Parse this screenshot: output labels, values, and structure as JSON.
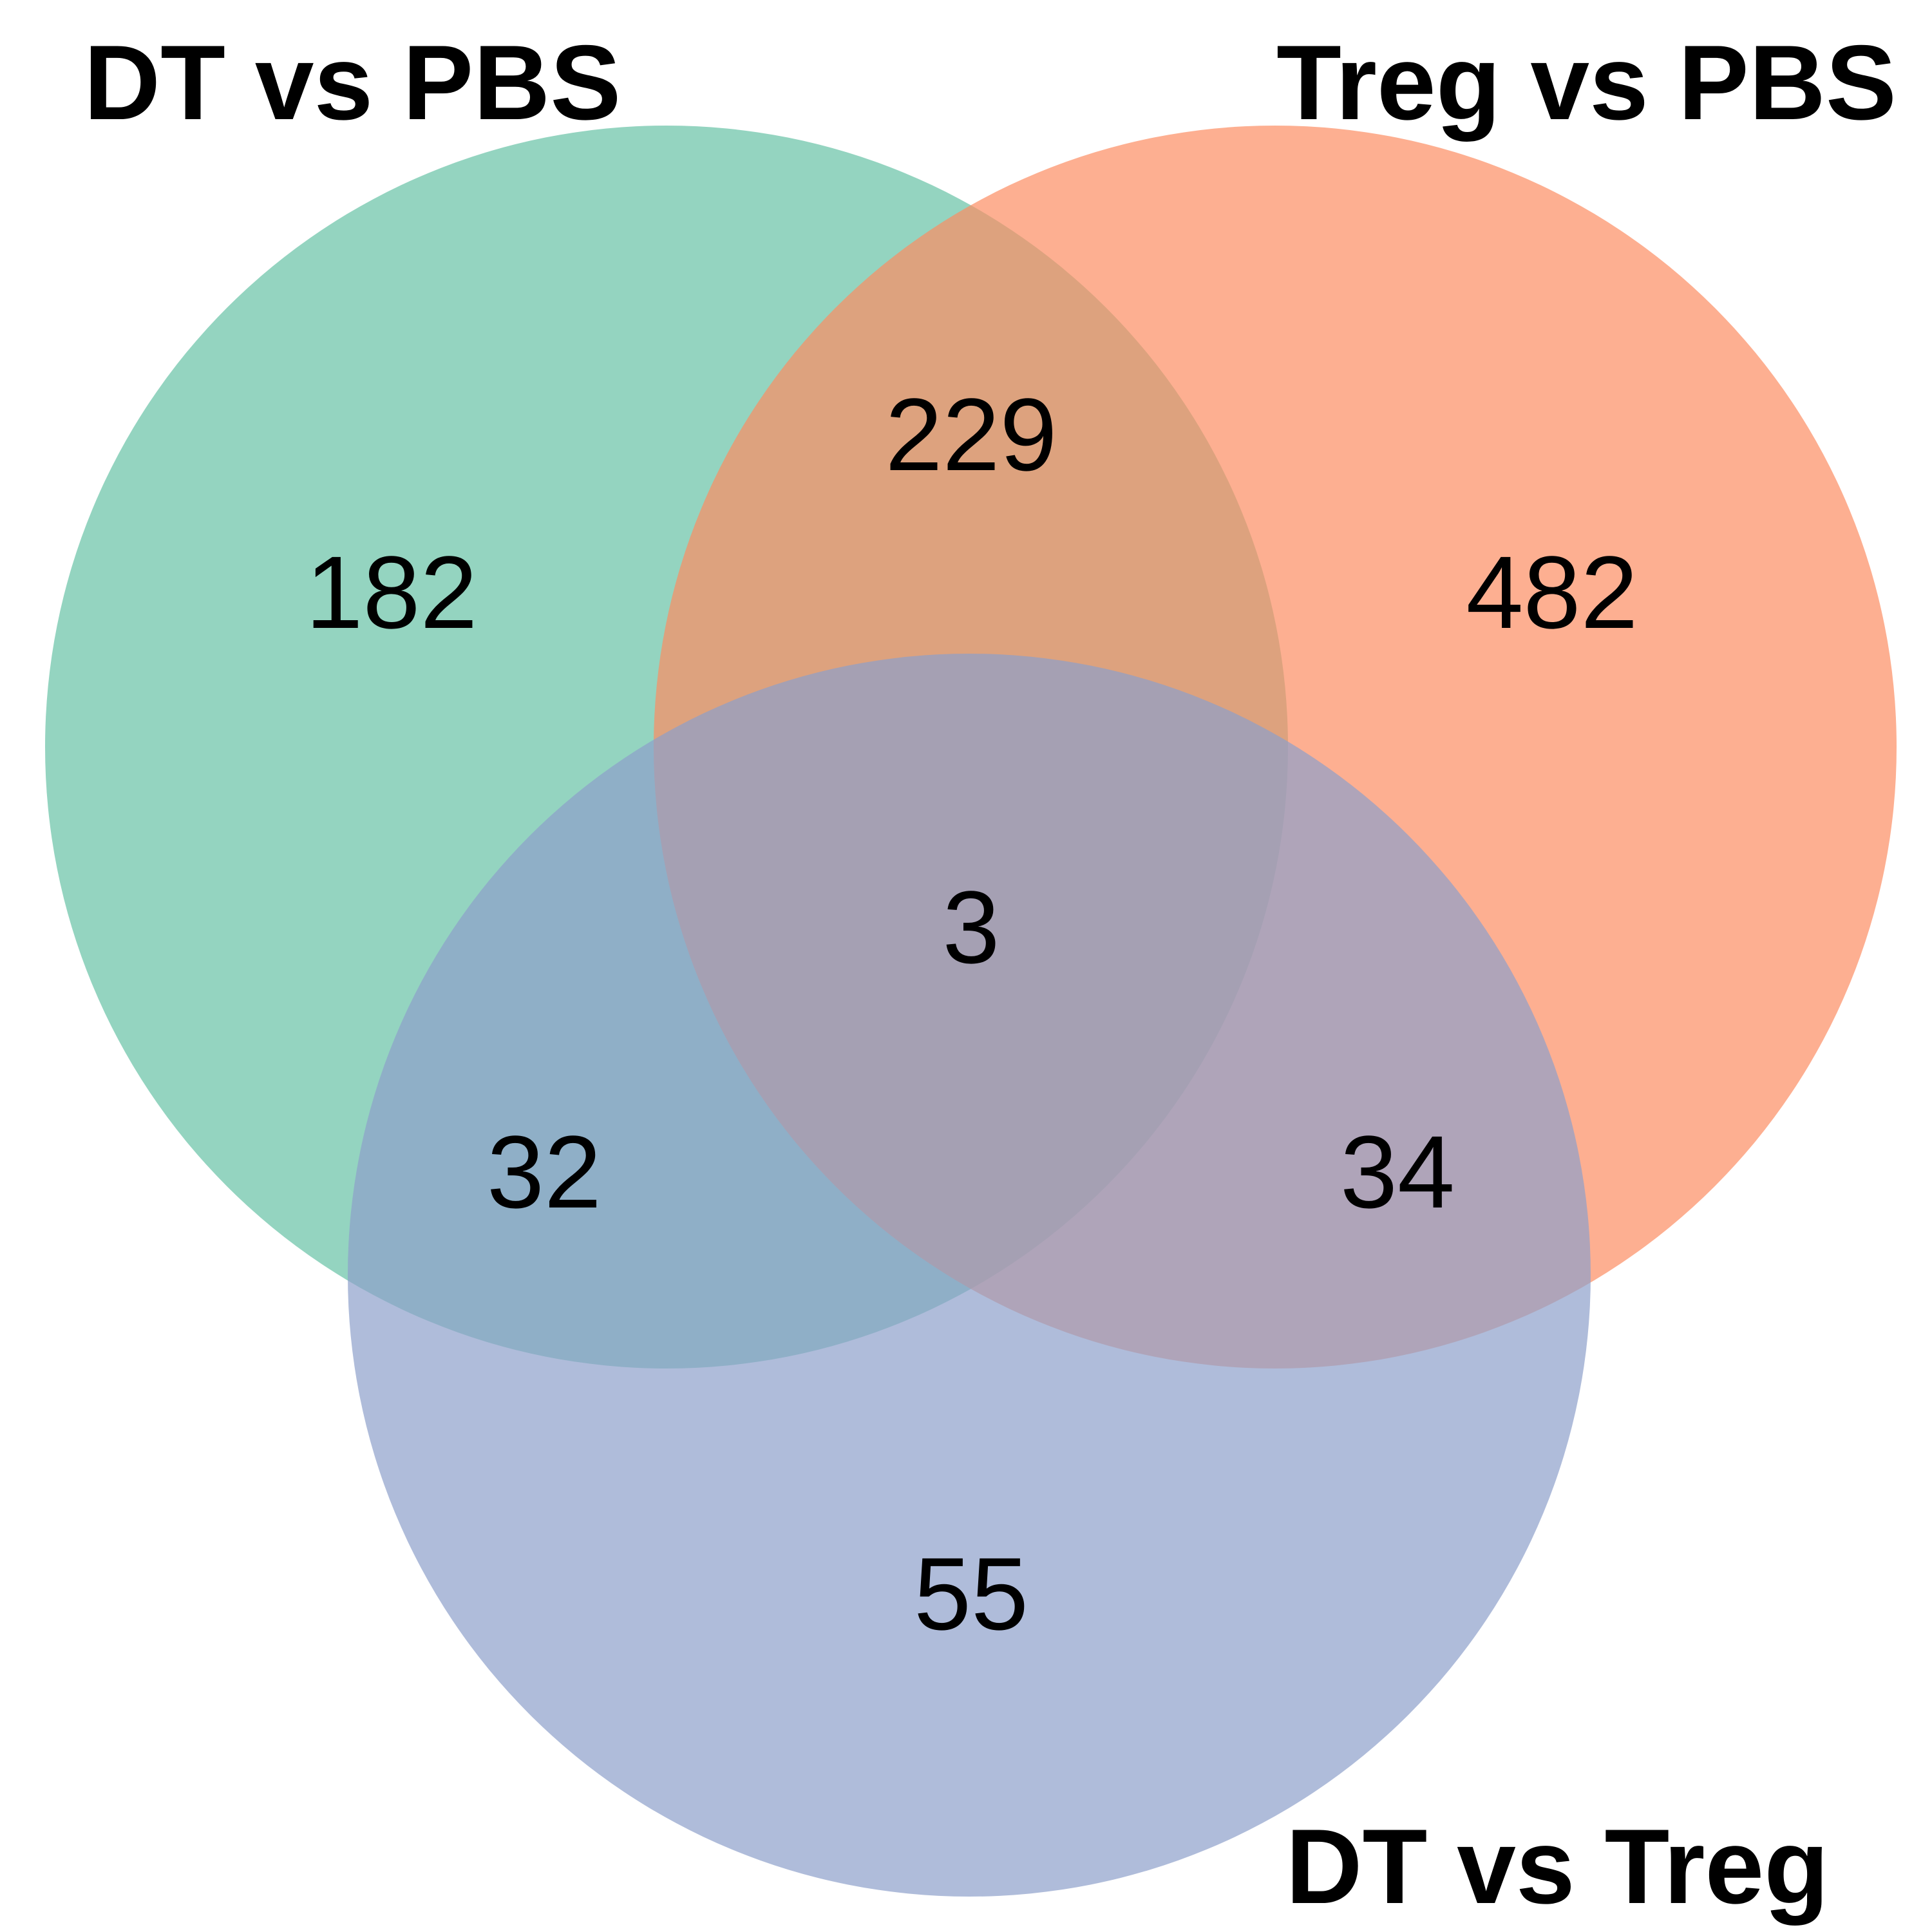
{
  "diagram": {
    "type": "venn3",
    "sets": [
      {
        "key": "A",
        "label": "DT vs PBS",
        "color": "#66c2a5"
      },
      {
        "key": "B",
        "label": "Treg vs PBS",
        "color": "#fc8d62"
      },
      {
        "key": "C",
        "label": "DT vs Treg",
        "color": "#8da0cb"
      }
    ],
    "fill_opacity": 0.7,
    "regions": {
      "A_only": "182",
      "B_only": "482",
      "C_only": "55",
      "AB": "229",
      "AC": "32",
      "BC": "34",
      "ABC": "3"
    }
  }
}
